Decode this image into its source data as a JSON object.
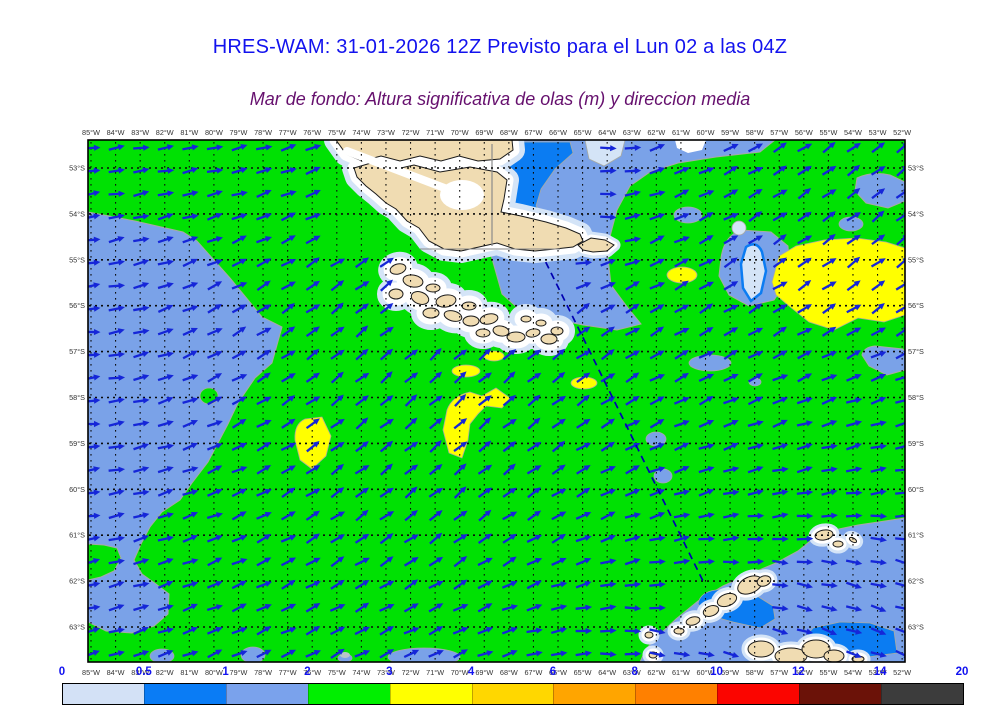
{
  "title": {
    "text": "HRES-WAM: 31-01-2026 12Z Previsto para el Lun 02 a las 04Z",
    "color": "#1212ee"
  },
  "subtitle": {
    "text": "Mar de fondo: Altura significativa de olas (m) y direccion media",
    "color": "#66106e"
  },
  "map": {
    "lon_labels": [
      "85°W",
      "84°W",
      "83°W",
      "82°W",
      "81°W",
      "80°W",
      "79°W",
      "78°W",
      "77°W",
      "76°W",
      "75°W",
      "74°W",
      "73°W",
      "72°W",
      "71°W",
      "70°W",
      "69°W",
      "68°W",
      "67°W",
      "66°W",
      "65°W",
      "64°W",
      "63°W",
      "62°W",
      "61°W",
      "60°W",
      "59°W",
      "58°W",
      "57°W",
      "56°W",
      "55°W",
      "54°W",
      "53°W",
      "52°W"
    ],
    "lat_labels": [
      "53°S",
      "54°S",
      "55°S",
      "56°S",
      "57°S",
      "58°S",
      "59°S",
      "60°S",
      "61°S",
      "62°S",
      "63°S"
    ],
    "tick_label_color": "#333333"
  },
  "colorbar": {
    "tick_labels": [
      "0",
      "0.5",
      "1",
      "2",
      "3",
      "4",
      "6",
      "8",
      "10",
      "12",
      "14",
      "20"
    ],
    "colors": [
      "#d3e1f6",
      "#0a7cf5",
      "#7aa2ec",
      "#00ef00",
      "#ffff00",
      "#ffd700",
      "#ffa500",
      "#ff8000",
      "#fb0500",
      "#6b1208",
      "#3c3c3c"
    ],
    "label_color": "#1212f0"
  },
  "palette": {
    "ocean_2_3m_green": "#00e103",
    "wave_1_2m_cornflower": "#7aa2e8",
    "wave_05_1m_blue": "#0b7cf2",
    "wave_0_05m_pale": "#d4e4f7",
    "wave_3_4m_yellow": "#ffff00",
    "coast_white": "#ffffff",
    "land_tan": "#f0dcb2",
    "land_outline": "#1a1a1a",
    "region_outline_gray": "#a9aaa2",
    "border_gray": "#8a8a8a",
    "grid_dot": "#0a0a0a",
    "arrow_blue": "#1526d8",
    "track_navy": "#0000b0"
  },
  "arrow_field": {
    "control_lons_w": [
      85,
      80,
      75,
      70,
      66,
      62,
      58,
      55,
      52
    ],
    "control_lats_s": [
      53,
      54.5,
      56,
      58,
      60,
      61.5,
      63
    ],
    "angles_deg_ccw_from_east": [
      [
        8,
        12,
        22,
        -15,
        -25,
        18,
        30,
        35,
        38
      ],
      [
        10,
        20,
        30,
        28,
        -12,
        22,
        32,
        35,
        38
      ],
      [
        5,
        28,
        38,
        42,
        35,
        30,
        32,
        33,
        35
      ],
      [
        5,
        25,
        38,
        42,
        38,
        28,
        24,
        20,
        18
      ],
      [
        8,
        22,
        35,
        40,
        32,
        20,
        12,
        10,
        8
      ],
      [
        12,
        22,
        32,
        35,
        25,
        10,
        0,
        -8,
        -12
      ],
      [
        15,
        22,
        28,
        25,
        10,
        -8,
        -15,
        -18,
        -20
      ]
    ]
  },
  "track_line": {
    "from": {
      "lon_w": 66.5,
      "lat_s": 55.05
    },
    "to": {
      "lon_w": 60.1,
      "lat_s": 62.0
    }
  }
}
